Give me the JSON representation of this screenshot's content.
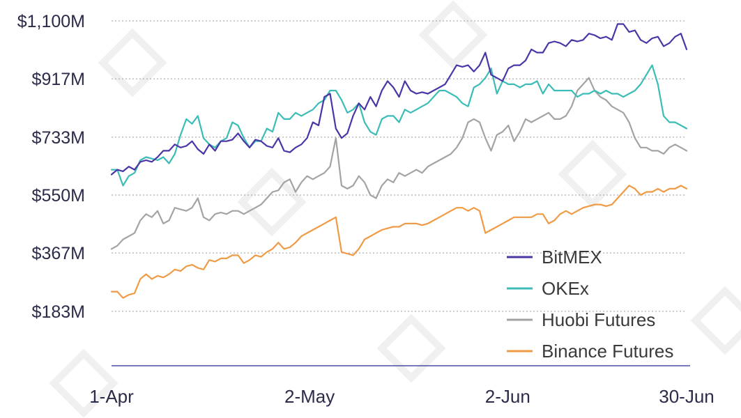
{
  "chart_data": {
    "type": "line",
    "title": "",
    "xlabel": "",
    "ylabel": "",
    "x_tick_labels": [
      "1-Apr",
      "2-May",
      "2-Jun",
      "30-Jun"
    ],
    "x_tick_days": [
      0,
      31,
      62,
      90
    ],
    "y_tick_labels": [
      "$183M",
      "$367M",
      "$550M",
      "$733M",
      "$917M",
      "$1,100M"
    ],
    "y_tick_values": [
      183,
      367,
      550,
      733,
      917,
      1100
    ],
    "ylim": [
      0,
      1100
    ],
    "y_unit": "$M",
    "grid": true,
    "legend_position": "bottom-right",
    "colors": {
      "BitMEX": "#4b35a6",
      "OKEx": "#3bbcb6",
      "Huobi Futures": "#a3a3a3",
      "Binance Futures": "#ef9a45",
      "axis": "#4b4ba8"
    },
    "series": [
      {
        "name": "BitMEX",
        "values": [
          615,
          630,
          625,
          640,
          630,
          655,
          660,
          655,
          670,
          690,
          690,
          710,
          700,
          705,
          720,
          695,
          680,
          710,
          690,
          720,
          720,
          725,
          745,
          720,
          700,
          725,
          720,
          705,
          700,
          730,
          690,
          685,
          700,
          710,
          730,
          780,
          770,
          860,
          870,
          760,
          730,
          745,
          800,
          840,
          820,
          860,
          830,
          880,
          910,
          890,
          860,
          910,
          880,
          870,
          875,
          870,
          880,
          890,
          900,
          930,
          960,
          955,
          960,
          940,
          960,
          1000,
          930,
          920,
          910,
          950,
          960,
          960,
          975,
          1010,
          1000,
          1000,
          1030,
          1035,
          1030,
          1020,
          1040,
          1035,
          1040,
          1060,
          1055,
          1045,
          1050,
          1040,
          1090,
          1090,
          1065,
          1070,
          1040,
          1030,
          1045,
          1050,
          1020,
          1030,
          1050,
          1060,
          1010
        ]
      },
      {
        "name": "OKEx",
        "values": [
          630,
          630,
          580,
          610,
          620,
          660,
          670,
          665,
          660,
          670,
          650,
          680,
          740,
          790,
          775,
          800,
          730,
          710,
          700,
          720,
          730,
          780,
          770,
          730,
          700,
          720,
          720,
          760,
          750,
          810,
          790,
          790,
          810,
          800,
          810,
          820,
          840,
          850,
          880,
          880,
          850,
          810,
          820,
          840,
          780,
          750,
          740,
          790,
          800,
          800,
          780,
          820,
          810,
          820,
          830,
          840,
          860,
          880,
          880,
          870,
          860,
          840,
          830,
          890,
          900,
          920,
          950,
          870,
          910,
          900,
          900,
          890,
          900,
          900,
          910,
          870,
          900,
          880,
          880,
          880,
          880,
          860,
          870,
          870,
          880,
          870,
          880,
          870,
          870,
          860,
          870,
          880,
          900,
          930,
          960,
          900,
          800,
          780,
          780,
          770,
          760
        ]
      },
      {
        "name": "Huobi Futures",
        "values": [
          380,
          390,
          410,
          420,
          430,
          470,
          490,
          480,
          500,
          460,
          470,
          510,
          505,
          500,
          510,
          540,
          480,
          470,
          490,
          495,
          490,
          500,
          500,
          490,
          500,
          510,
          520,
          540,
          560,
          565,
          590,
          600,
          560,
          590,
          610,
          600,
          610,
          620,
          640,
          730,
          580,
          570,
          580,
          610,
          590,
          550,
          540,
          580,
          600,
          590,
          620,
          610,
          620,
          630,
          620,
          640,
          650,
          660,
          670,
          680,
          700,
          730,
          780,
          790,
          780,
          730,
          690,
          740,
          750,
          770,
          720,
          750,
          790,
          780,
          790,
          800,
          810,
          790,
          790,
          800,
          830,
          880,
          900,
          920,
          880,
          860,
          850,
          830,
          820,
          810,
          780,
          730,
          700,
          700,
          690,
          690,
          680,
          700,
          710,
          700,
          690
        ]
      },
      {
        "name": "Binance Futures",
        "values": [
          245,
          245,
          225,
          235,
          240,
          285,
          300,
          285,
          295,
          290,
          300,
          315,
          310,
          325,
          330,
          320,
          315,
          345,
          340,
          350,
          350,
          360,
          360,
          335,
          345,
          360,
          355,
          370,
          380,
          400,
          380,
          385,
          400,
          420,
          430,
          440,
          450,
          460,
          470,
          480,
          370,
          365,
          360,
          380,
          410,
          420,
          430,
          440,
          445,
          450,
          450,
          460,
          460,
          460,
          455,
          460,
          470,
          480,
          490,
          500,
          510,
          510,
          500,
          510,
          500,
          430,
          440,
          450,
          460,
          470,
          480,
          480,
          480,
          480,
          490,
          490,
          460,
          470,
          490,
          500,
          490,
          500,
          510,
          515,
          520,
          520,
          515,
          520,
          540,
          560,
          580,
          570,
          550,
          560,
          560,
          570,
          560,
          570,
          570,
          580,
          570
        ]
      }
    ]
  }
}
